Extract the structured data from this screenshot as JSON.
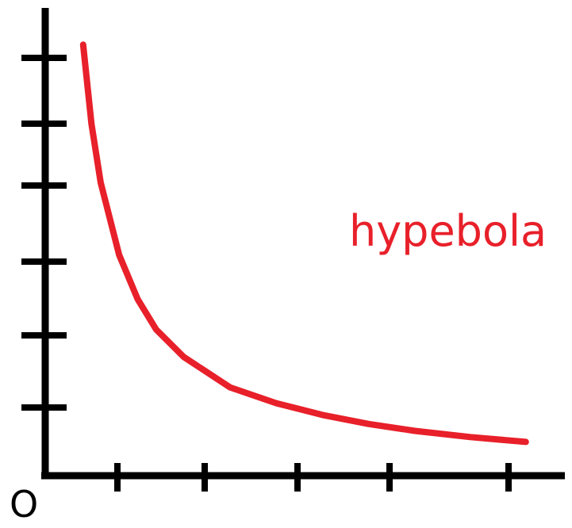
{
  "chart_data": {
    "type": "line",
    "title": "",
    "xlabel": "",
    "ylabel": "",
    "origin_label": "O",
    "series_label": "hypebola",
    "curve_color": "#e8202a",
    "axis_color": "#000000",
    "x_tick_count": 5,
    "y_tick_count": 6,
    "grid": false,
    "series": [
      {
        "curve": "y = 1/x",
        "x": [
          0.41,
          0.5,
          0.6,
          0.8,
          1.0,
          1.2,
          1.5,
          2.0,
          2.5,
          3.0,
          3.5,
          4.0,
          4.6,
          5.2
        ],
        "y": [
          6.25,
          5.1,
          4.25,
          3.2,
          2.56,
          2.12,
          1.72,
          1.28,
          1.05,
          0.88,
          0.75,
          0.65,
          0.56,
          0.49
        ]
      }
    ]
  }
}
